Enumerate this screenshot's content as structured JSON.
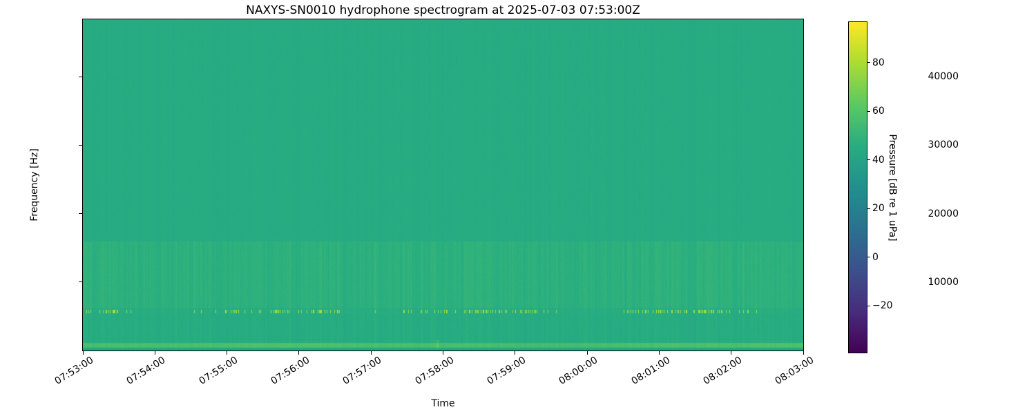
{
  "chart_data": {
    "type": "heatmap",
    "subtype": "spectrogram",
    "title": "NAXYS-SN0010 hydrophone spectrogram at 2025-07-03 07:53:00Z",
    "xlabel": "Time",
    "ylabel": "Frequency [Hz]",
    "x_tick_labels": [
      "07:53:00",
      "07:54:00",
      "07:55:00",
      "07:56:00",
      "07:57:00",
      "07:58:00",
      "07:59:00",
      "08:00:00",
      "08:01:00",
      "08:02:00",
      "08:03:00"
    ],
    "x_span_seconds": 600,
    "y_ticks": [
      {
        "label": "10000",
        "value": 10000
      },
      {
        "label": "20000",
        "value": 20000
      },
      {
        "label": "30000",
        "value": 30000
      },
      {
        "label": "40000",
        "value": 40000
      }
    ],
    "ylim_hz": [
      0,
      48400
    ],
    "grid": false,
    "colormap": "viridis",
    "colormap_stops": [
      "#440154",
      "#472d7b",
      "#3b518b",
      "#2c718e",
      "#21908d",
      "#27ad81",
      "#5cc863",
      "#aadc32",
      "#fde725"
    ],
    "colorbar": {
      "label": "Pressure [dB re 1 uPa]",
      "ticks": [
        {
          "label": "80",
          "value": 80
        },
        {
          "label": "60",
          "value": 60
        },
        {
          "label": "40",
          "value": 40
        },
        {
          "label": "20",
          "value": 20
        },
        {
          "label": "0",
          "value": 0
        },
        {
          "label": "−20",
          "value": -20
        }
      ],
      "vmin_db": -39,
      "vmax_db": 97,
      "orientation": "vertical",
      "position": "right"
    },
    "render_model": {
      "description": "Mostly uniform teal background (~45 dB) with faint vertical striations; elevated striated band 6.3-16 kHz; regular bright pulse dashes near 5.5-6 kHz (~78 dB); bright low-frequency line 0.5-1.2 kHz (~54-58 dB); darker band below 0.5 kHz; one brighter low-frequency transient near 07:58.",
      "background_db": 45.0,
      "bands": [
        {
          "name": "high-broadband",
          "f0_hz": 16000,
          "f1_hz": 48400,
          "base_db": 45.0,
          "striation_db": 0.9,
          "noise_db": 0.5
        },
        {
          "name": "mid-elevated",
          "f0_hz": 6300,
          "f1_hz": 16000,
          "base_db": 47.8,
          "striation_db": 3.0,
          "noise_db": 1.1
        },
        {
          "name": "pulse-tonal",
          "f0_hz": 5400,
          "f1_hz": 6300,
          "base_db": 46.0,
          "striation_db": 2.0,
          "noise_db": 1.0,
          "pulse_db": 78,
          "pulse_jitter_db": 5,
          "pulse_duty": 0.25,
          "pulse_f0_hz": 5480,
          "pulse_f1_hz": 6050
        },
        {
          "name": "low-mid",
          "f0_hz": 1200,
          "f1_hz": 5400,
          "base_db": 45.5,
          "striation_db": 2.2,
          "noise_db": 0.9
        },
        {
          "name": "low-line",
          "f0_hz": 500,
          "f1_hz": 1200,
          "base_db": 53.5,
          "striation_db": 2.0,
          "noise_db": 1.3,
          "slow_mod_db": 3.5,
          "core_f0_hz": 680,
          "core_f1_hz": 1020,
          "core_boost_db": 1.8
        },
        {
          "name": "bottom-edge",
          "f0_hz": 0,
          "f1_hz": 500,
          "base_db": 42.5,
          "striation_db": 1.0,
          "noise_db": 0.8
        }
      ],
      "transient": {
        "time_frac": 0.492,
        "f0_hz": 300,
        "f1_hz": 1600,
        "boost_db": 9
      }
    }
  }
}
